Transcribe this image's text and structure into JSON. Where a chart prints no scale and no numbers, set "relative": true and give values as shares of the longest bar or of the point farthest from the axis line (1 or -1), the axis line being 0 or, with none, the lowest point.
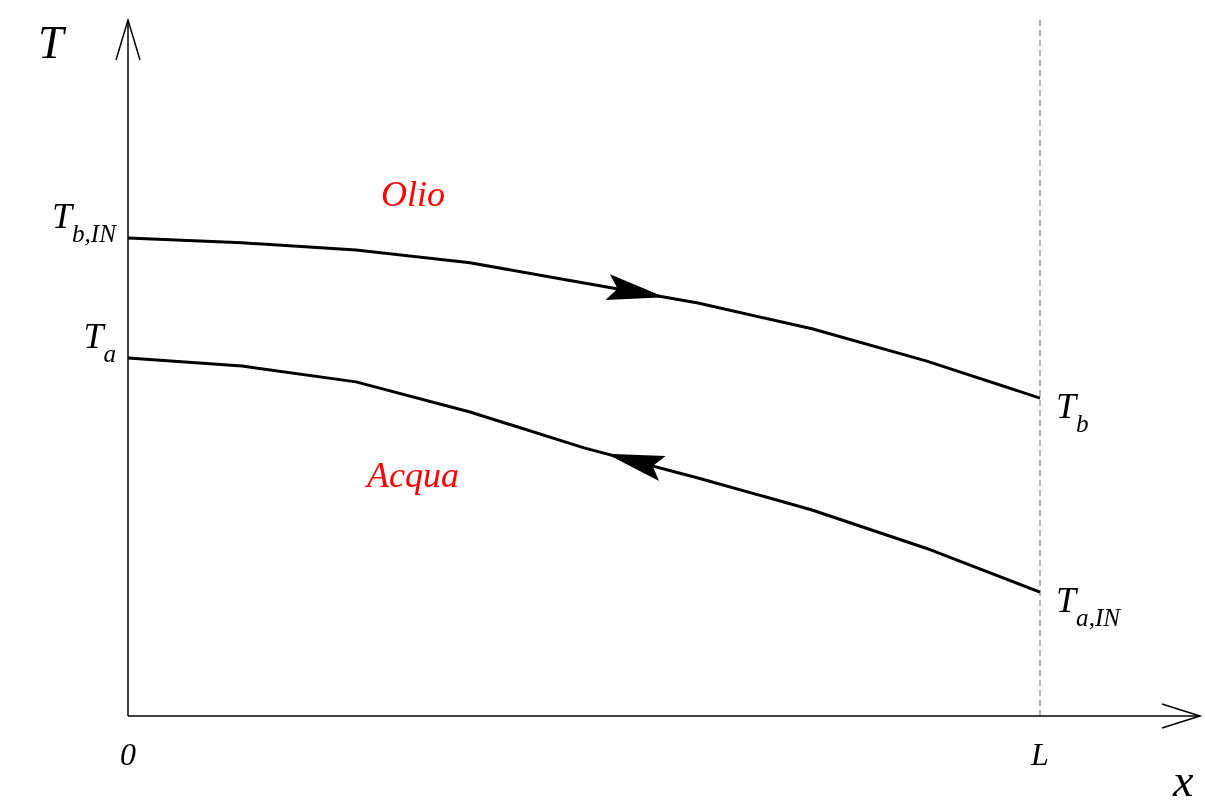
{
  "chart_data": {
    "type": "line",
    "relative": true,
    "ylabel": "T",
    "xlabel": "x",
    "categories": [
      "0",
      null,
      null,
      null,
      null,
      null,
      null,
      null,
      "L"
    ],
    "series": [
      {
        "name": "Olio",
        "color": "#000000",
        "values": [
          1,
          0.99,
          0.975,
          0.948,
          0.906,
          0.864,
          0.81,
          0.743,
          0.665
        ]
      },
      {
        "name": "Acqua",
        "color": "#000000",
        "values": [
          0.749,
          0.732,
          0.699,
          0.636,
          0.561,
          0.498,
          0.431,
          0.351,
          0.259
        ]
      }
    ],
    "ref_lines": [
      {
        "axis": "x",
        "value": "L",
        "color": "#a0a0a0",
        "line_style": "dashed"
      }
    ],
    "annotations": [
      {
        "text": "T$_{b,IN}$",
        "x": "0",
        "y": 1
      },
      {
        "text": "T$_{a}$",
        "x": "0",
        "y": 0.749
      },
      {
        "text": "T$_{b}$",
        "x": "L",
        "y": 0.665
      },
      {
        "text": "T$_{a,IN}$",
        "x": "L",
        "y": 0.259
      }
    ]
  }
}
